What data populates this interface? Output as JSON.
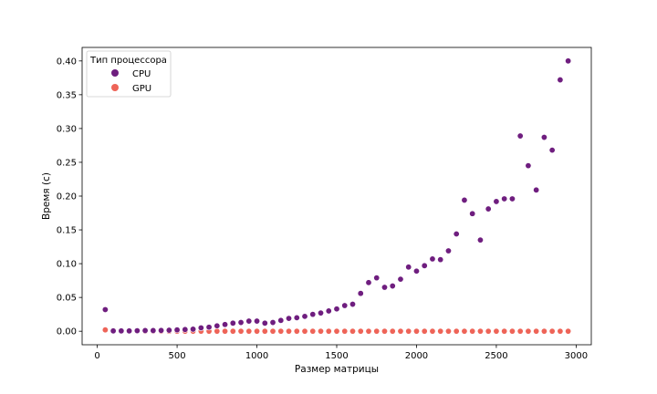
{
  "chart_data": {
    "type": "scatter",
    "title": "",
    "xlabel": "Размер матрицы",
    "ylabel": "Время (с)",
    "xlim": [
      -95,
      3095
    ],
    "ylim": [
      -0.02,
      0.42
    ],
    "xticks": [
      0,
      500,
      1000,
      1500,
      2000,
      2500,
      3000
    ],
    "yticks": [
      0.0,
      0.05,
      0.1,
      0.15,
      0.2,
      0.25,
      0.3,
      0.35,
      0.4
    ],
    "xtick_labels": [
      "0",
      "500",
      "1000",
      "1500",
      "2000",
      "2500",
      "3000"
    ],
    "ytick_labels": [
      "0.00",
      "0.05",
      "0.10",
      "0.15",
      "0.20",
      "0.25",
      "0.30",
      "0.35",
      "0.40"
    ],
    "grid": false,
    "legend": {
      "title": "Тип процессора",
      "placement": "top-left"
    },
    "x": [
      50,
      100,
      150,
      200,
      250,
      300,
      350,
      400,
      450,
      500,
      550,
      600,
      650,
      700,
      750,
      800,
      850,
      900,
      950,
      1000,
      1050,
      1100,
      1150,
      1200,
      1250,
      1300,
      1350,
      1400,
      1450,
      1500,
      1550,
      1600,
      1650,
      1700,
      1750,
      1800,
      1850,
      1900,
      1950,
      2000,
      2050,
      2100,
      2150,
      2200,
      2250,
      2300,
      2350,
      2400,
      2450,
      2500,
      2550,
      2600,
      2650,
      2700,
      2750,
      2800,
      2850,
      2900,
      2950
    ],
    "series": [
      {
        "name": "CPU",
        "color": "#6f1e7f",
        "values": [
          0.032,
          0.0005,
          0.0005,
          0.0005,
          0.0008,
          0.001,
          0.001,
          0.0012,
          0.0015,
          0.002,
          0.0025,
          0.003,
          0.005,
          0.006,
          0.008,
          0.01,
          0.012,
          0.013,
          0.015,
          0.015,
          0.012,
          0.013,
          0.016,
          0.019,
          0.02,
          0.022,
          0.025,
          0.027,
          0.03,
          0.033,
          0.038,
          0.04,
          0.056,
          0.072,
          0.079,
          0.065,
          0.067,
          0.077,
          0.095,
          0.089,
          0.097,
          0.107,
          0.106,
          0.119,
          0.144,
          0.194,
          0.174,
          0.135,
          0.181,
          0.192,
          0.196,
          0.196,
          0.289,
          0.245,
          0.209,
          0.287,
          0.268,
          0.372,
          0.4
        ]
      },
      {
        "name": "GPU",
        "color": "#ee6458",
        "values": [
          0.002,
          0.001,
          0.0,
          0.0,
          0.0,
          0.0,
          0.0,
          0.0,
          0.0,
          0.0,
          0.0,
          0.0,
          0.0,
          0.0,
          0.0,
          0.0,
          0.0,
          0.0,
          0.0,
          0.0,
          0.0,
          0.0,
          0.0,
          0.0,
          0.0,
          0.0,
          0.0,
          0.0,
          0.0,
          0.0,
          0.0,
          0.0,
          0.0,
          0.0,
          0.0,
          0.0,
          0.0,
          0.0,
          0.0,
          0.0,
          0.0,
          0.0,
          0.0,
          0.0,
          0.0,
          0.0,
          0.0,
          0.0,
          0.0,
          0.0,
          0.0,
          0.0,
          0.0,
          0.0,
          0.0,
          0.0,
          0.0,
          0.0,
          0.0
        ]
      }
    ]
  }
}
